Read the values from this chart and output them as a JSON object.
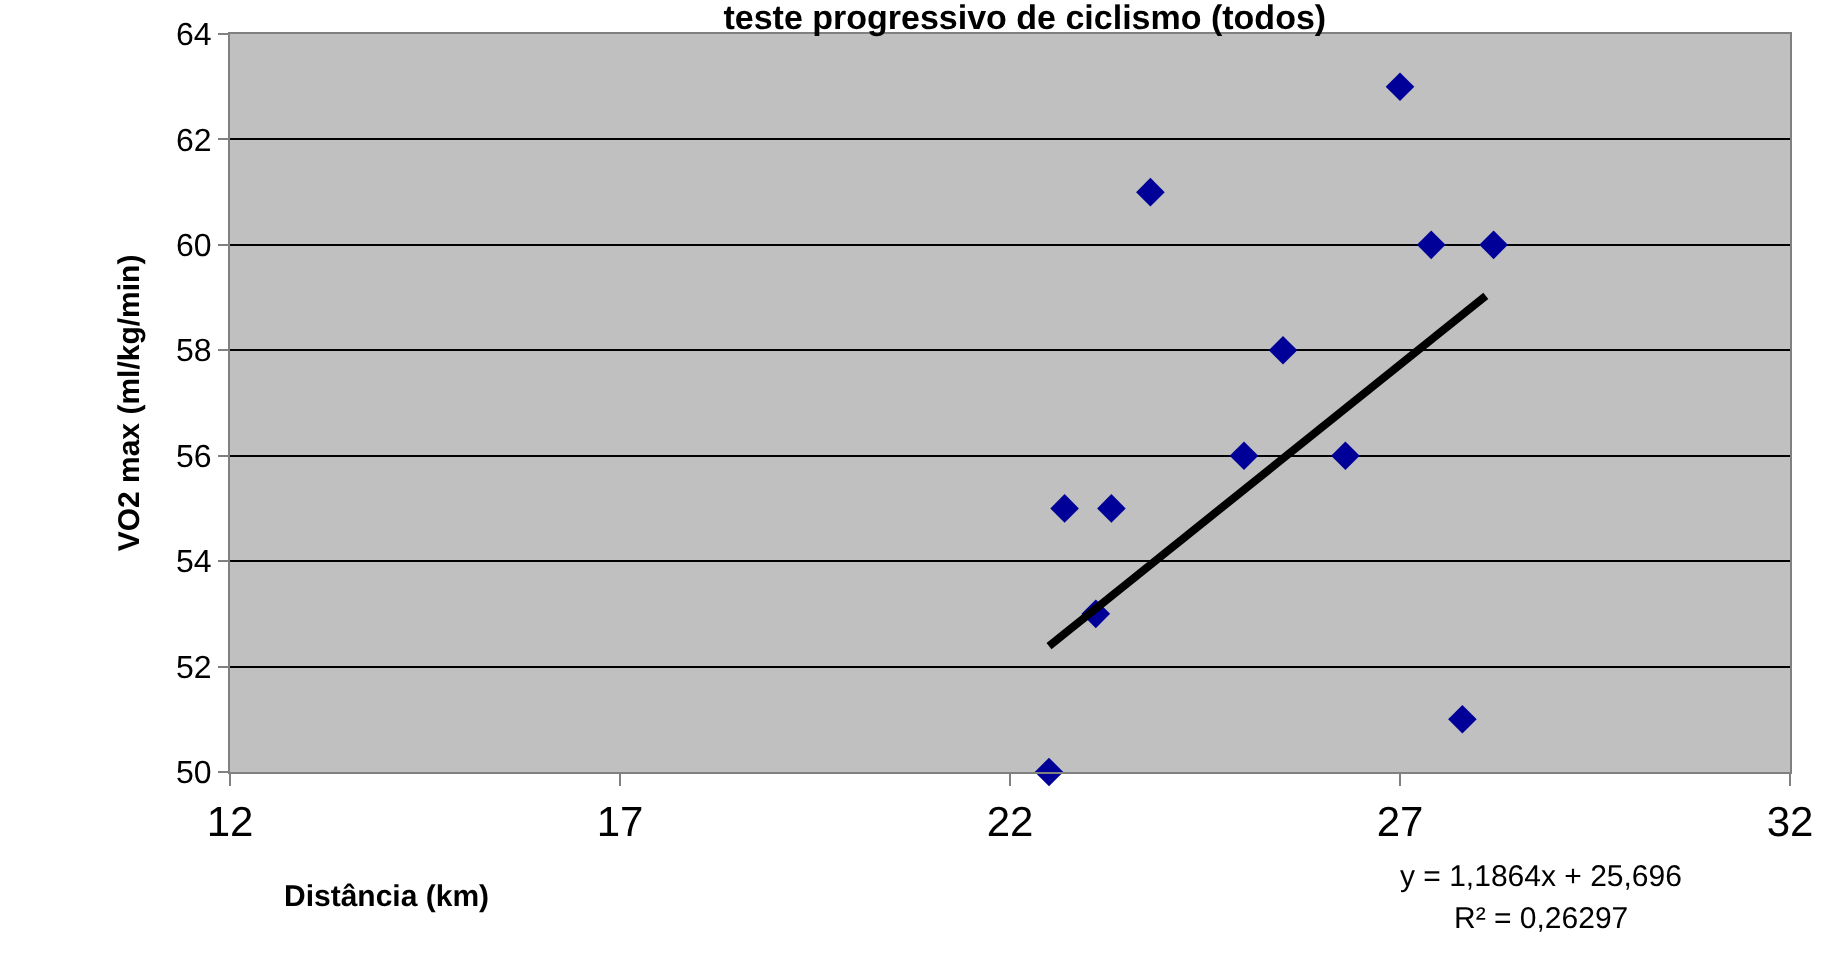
{
  "chart_data": {
    "type": "scatter",
    "title": "teste progressivo de ciclismo (todos)",
    "xlabel": "Distância (km)",
    "ylabel": "VO2 max (ml/kg/min)",
    "series": [
      {
        "color": "#000099",
        "marker": "diamond",
        "x": [
          22.5,
          22.7,
          23.3,
          23.1,
          23.8,
          25.0,
          25.5,
          26.3,
          27.0,
          27.4,
          28.2,
          27.8
        ],
        "values": [
          50,
          55,
          55,
          53,
          61,
          56,
          58,
          56,
          63,
          60,
          60,
          51
        ]
      },
      {
        "type": "line",
        "color": "#000000",
        "marker": "none",
        "x": [
          22.5,
          28.1
        ],
        "values": [
          52.39,
          59.03
        ]
      }
    ],
    "xlim": [
      12,
      32
    ],
    "xticks": [
      12,
      17,
      22,
      27,
      32
    ],
    "ylim": [
      50,
      64
    ],
    "yticks": [
      50,
      52,
      54,
      56,
      58,
      60,
      62,
      64
    ],
    "grid": "y",
    "annotations": [
      "y = 1,1864x + 25,696",
      "R² = 0,26297"
    ]
  }
}
